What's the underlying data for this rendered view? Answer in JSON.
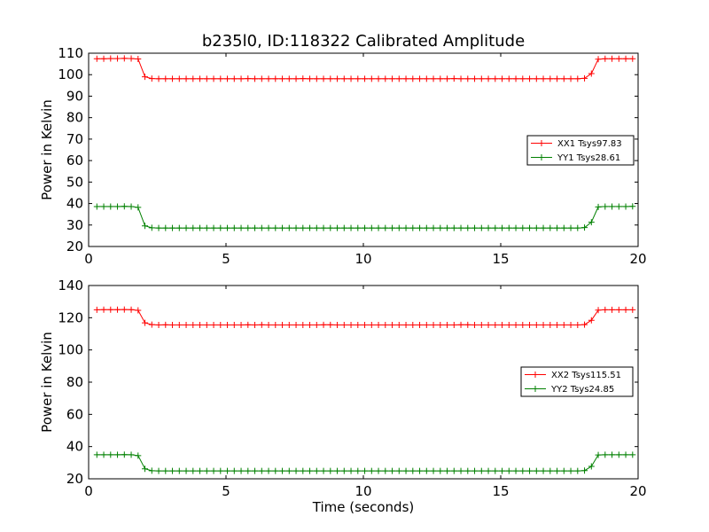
{
  "figure": {
    "title": "b235l0, ID:118322 Calibrated Amplitude",
    "xlabel": "Time (seconds)"
  },
  "chart_data": [
    {
      "type": "line",
      "ylabel": "Power in Kelvin",
      "xlabel": "",
      "xlim": [
        0,
        20
      ],
      "ylim": [
        20,
        110
      ],
      "xticks": [
        0,
        5,
        10,
        15,
        20
      ],
      "yticks": [
        20,
        30,
        40,
        50,
        60,
        70,
        80,
        90,
        100,
        110
      ],
      "legend_position": "center-right",
      "grid": false,
      "series": [
        {
          "name": "XX1 Tsys97.83",
          "color": "#ff0000",
          "marker": "plus",
          "x": [
            0.3,
            0.55,
            0.8,
            1.05,
            1.3,
            1.55,
            1.8,
            2.05,
            2.3,
            2.55,
            2.8,
            3.05,
            3.3,
            3.55,
            3.8,
            4.05,
            4.3,
            4.55,
            4.8,
            5.05,
            5.3,
            5.55,
            5.8,
            6.05,
            6.3,
            6.55,
            6.8,
            7.05,
            7.3,
            7.55,
            7.8,
            8.05,
            8.3,
            8.55,
            8.8,
            9.05,
            9.3,
            9.55,
            9.8,
            10.05,
            10.3,
            10.55,
            10.8,
            11.05,
            11.3,
            11.55,
            11.8,
            12.05,
            12.3,
            12.55,
            12.8,
            13.05,
            13.3,
            13.55,
            13.8,
            14.05,
            14.3,
            14.55,
            14.8,
            15.05,
            15.3,
            15.55,
            15.8,
            16.05,
            16.3,
            16.55,
            16.8,
            17.05,
            17.3,
            17.55,
            17.8,
            18.05,
            18.3,
            18.55,
            18.8,
            19.05,
            19.3,
            19.55,
            19.8
          ],
          "y": [
            107.4,
            107.4,
            107.5,
            107.5,
            107.6,
            107.5,
            107.3,
            99.0,
            98.2,
            98.1,
            98.1,
            98.1,
            98.1,
            98.1,
            98.1,
            98.1,
            98.1,
            98.1,
            98.1,
            98.1,
            98.1,
            98.1,
            98.2,
            98.1,
            98.1,
            98.1,
            98.1,
            98.1,
            98.1,
            98.1,
            98.2,
            98.1,
            98.1,
            98.1,
            98.1,
            98.1,
            98.1,
            98.1,
            98.1,
            98.1,
            98.1,
            98.1,
            98.1,
            98.1,
            98.1,
            98.1,
            98.1,
            98.1,
            98.1,
            98.1,
            98.1,
            98.1,
            98.2,
            98.1,
            98.1,
            98.1,
            98.1,
            98.1,
            98.1,
            98.1,
            98.1,
            98.1,
            98.1,
            98.1,
            98.1,
            98.1,
            98.1,
            98.1,
            98.1,
            98.1,
            98.1,
            98.3,
            100.5,
            107.2,
            107.4,
            107.4,
            107.4,
            107.4,
            107.4
          ]
        },
        {
          "name": "YY1 Tsys28.61",
          "color": "#008000",
          "marker": "plus",
          "x": [
            0.3,
            0.55,
            0.8,
            1.05,
            1.3,
            1.55,
            1.8,
            2.05,
            2.3,
            2.55,
            2.8,
            3.05,
            3.3,
            3.55,
            3.8,
            4.05,
            4.3,
            4.55,
            4.8,
            5.05,
            5.3,
            5.55,
            5.8,
            6.05,
            6.3,
            6.55,
            6.8,
            7.05,
            7.3,
            7.55,
            7.8,
            8.05,
            8.3,
            8.55,
            8.8,
            9.05,
            9.3,
            9.55,
            9.8,
            10.05,
            10.3,
            10.55,
            10.8,
            11.05,
            11.3,
            11.55,
            11.8,
            12.05,
            12.3,
            12.55,
            12.8,
            13.05,
            13.3,
            13.55,
            13.8,
            14.05,
            14.3,
            14.55,
            14.8,
            15.05,
            15.3,
            15.55,
            15.8,
            16.05,
            16.3,
            16.55,
            16.8,
            17.05,
            17.3,
            17.55,
            17.8,
            18.05,
            18.3,
            18.55,
            18.8,
            19.05,
            19.3,
            19.55,
            19.8
          ],
          "y": [
            38.6,
            38.6,
            38.6,
            38.6,
            38.7,
            38.6,
            38.2,
            29.6,
            28.7,
            28.6,
            28.6,
            28.6,
            28.6,
            28.6,
            28.6,
            28.6,
            28.6,
            28.6,
            28.6,
            28.6,
            28.6,
            28.6,
            28.6,
            28.6,
            28.6,
            28.6,
            28.6,
            28.6,
            28.6,
            28.6,
            28.6,
            28.6,
            28.6,
            28.6,
            28.6,
            28.6,
            28.6,
            28.6,
            28.6,
            28.6,
            28.6,
            28.6,
            28.6,
            28.6,
            28.6,
            28.6,
            28.6,
            28.6,
            28.6,
            28.6,
            28.6,
            28.6,
            28.6,
            28.6,
            28.6,
            28.6,
            28.6,
            28.6,
            28.6,
            28.6,
            28.6,
            28.6,
            28.6,
            28.6,
            28.6,
            28.6,
            28.6,
            28.6,
            28.6,
            28.6,
            28.6,
            28.8,
            31.3,
            38.4,
            38.6,
            38.6,
            38.6,
            38.6,
            38.7
          ]
        }
      ]
    },
    {
      "type": "line",
      "ylabel": "Power in Kelvin",
      "xlabel": "Time (seconds)",
      "xlim": [
        0,
        20
      ],
      "ylim": [
        20,
        140
      ],
      "xticks": [
        0,
        5,
        10,
        15,
        20
      ],
      "yticks": [
        20,
        40,
        60,
        80,
        100,
        120,
        140
      ],
      "legend_position": "center-right",
      "grid": false,
      "series": [
        {
          "name": "XX2 Tsys115.51",
          "color": "#ff0000",
          "marker": "plus",
          "x": [
            0.3,
            0.55,
            0.8,
            1.05,
            1.3,
            1.55,
            1.8,
            2.05,
            2.3,
            2.55,
            2.8,
            3.05,
            3.3,
            3.55,
            3.8,
            4.05,
            4.3,
            4.55,
            4.8,
            5.05,
            5.3,
            5.55,
            5.8,
            6.05,
            6.3,
            6.55,
            6.8,
            7.05,
            7.3,
            7.55,
            7.8,
            8.05,
            8.3,
            8.55,
            8.8,
            9.05,
            9.3,
            9.55,
            9.8,
            10.05,
            10.3,
            10.55,
            10.8,
            11.05,
            11.3,
            11.55,
            11.8,
            12.05,
            12.3,
            12.55,
            12.8,
            13.05,
            13.3,
            13.55,
            13.8,
            14.05,
            14.3,
            14.55,
            14.8,
            15.05,
            15.3,
            15.55,
            15.8,
            16.05,
            16.3,
            16.55,
            16.8,
            17.05,
            17.3,
            17.55,
            17.8,
            18.05,
            18.3,
            18.55,
            18.8,
            19.05,
            19.3,
            19.55,
            19.8
          ],
          "y": [
            124.9,
            125.0,
            125.0,
            125.0,
            125.1,
            125.0,
            124.6,
            116.8,
            115.7,
            115.5,
            115.6,
            115.5,
            115.5,
            115.5,
            115.5,
            115.5,
            115.5,
            115.5,
            115.5,
            115.5,
            115.5,
            115.5,
            115.6,
            115.5,
            115.6,
            115.5,
            115.5,
            115.5,
            115.5,
            115.5,
            115.5,
            115.5,
            115.5,
            115.6,
            115.6,
            115.5,
            115.5,
            115.5,
            115.5,
            115.5,
            115.5,
            115.5,
            115.5,
            115.5,
            115.5,
            115.5,
            115.5,
            115.5,
            115.5,
            115.5,
            115.5,
            115.5,
            115.5,
            115.6,
            115.6,
            115.5,
            115.5,
            115.5,
            115.5,
            115.5,
            115.5,
            115.5,
            115.5,
            115.5,
            115.5,
            115.5,
            115.5,
            115.5,
            115.5,
            115.5,
            115.5,
            115.7,
            118.4,
            124.7,
            124.9,
            124.9,
            124.9,
            124.9,
            124.9
          ]
        },
        {
          "name": "YY2 Tsys24.85",
          "color": "#008000",
          "marker": "plus",
          "x": [
            0.3,
            0.55,
            0.8,
            1.05,
            1.3,
            1.55,
            1.8,
            2.05,
            2.3,
            2.55,
            2.8,
            3.05,
            3.3,
            3.55,
            3.8,
            4.05,
            4.3,
            4.55,
            4.8,
            5.05,
            5.3,
            5.55,
            5.8,
            6.05,
            6.3,
            6.55,
            6.8,
            7.05,
            7.3,
            7.55,
            7.8,
            8.05,
            8.3,
            8.55,
            8.8,
            9.05,
            9.3,
            9.55,
            9.8,
            10.05,
            10.3,
            10.55,
            10.8,
            11.05,
            11.3,
            11.55,
            11.8,
            12.05,
            12.3,
            12.55,
            12.8,
            13.05,
            13.3,
            13.55,
            13.8,
            14.05,
            14.3,
            14.55,
            14.8,
            15.05,
            15.3,
            15.55,
            15.8,
            16.05,
            16.3,
            16.55,
            16.8,
            17.05,
            17.3,
            17.55,
            17.8,
            18.05,
            18.3,
            18.55,
            18.8,
            19.05,
            19.3,
            19.55,
            19.8
          ],
          "y": [
            34.9,
            34.9,
            34.9,
            34.9,
            35.0,
            34.9,
            34.4,
            26.2,
            25.0,
            24.9,
            24.9,
            24.9,
            24.9,
            24.9,
            24.9,
            24.9,
            24.9,
            24.9,
            24.9,
            24.9,
            24.9,
            24.9,
            24.9,
            24.9,
            24.9,
            24.9,
            24.9,
            24.9,
            24.9,
            24.9,
            24.9,
            24.9,
            24.9,
            24.9,
            24.9,
            24.9,
            24.9,
            24.9,
            24.9,
            24.9,
            24.9,
            24.9,
            24.9,
            24.9,
            24.9,
            24.9,
            24.9,
            24.9,
            24.9,
            24.9,
            24.9,
            24.9,
            24.9,
            24.9,
            24.9,
            24.9,
            24.9,
            24.9,
            24.9,
            24.9,
            24.9,
            24.9,
            24.9,
            24.9,
            24.9,
            24.9,
            24.9,
            24.9,
            24.9,
            24.9,
            24.9,
            25.1,
            27.7,
            34.8,
            34.9,
            34.9,
            34.9,
            34.9,
            34.9
          ]
        }
      ]
    }
  ]
}
